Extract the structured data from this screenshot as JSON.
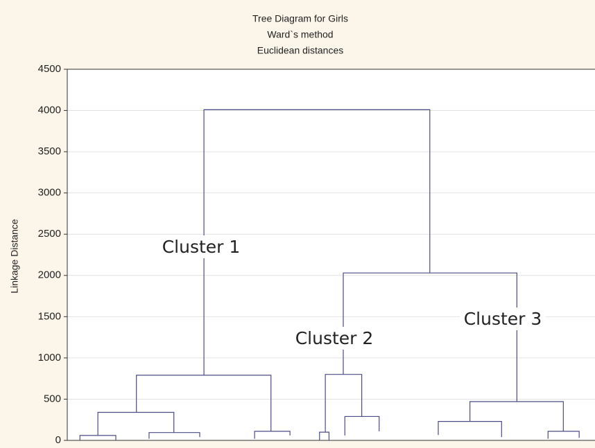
{
  "chart_data": {
    "type": "dendrogram",
    "title": [
      "Tree Diagram for Girls",
      "Ward`s method",
      "Euclidean distances"
    ],
    "y_label": "Linkage Distance",
    "ylim": [
      0,
      4500
    ],
    "yticks": [
      0,
      500,
      1000,
      1500,
      2000,
      2500,
      3000,
      3500,
      4000,
      4500
    ],
    "xlim": [
      0,
      100
    ],
    "grid": true,
    "color": "#4b4b86",
    "annotations": [
      "Cluster 1",
      "Cluster 2",
      "Cluster 3"
    ],
    "links": [
      {
        "x": [
          25.9,
          68.7
        ],
        "height": 4010,
        "left_from": 790,
        "right_from": 2030
      },
      {
        "x": [
          13.1,
          38.6
        ],
        "height": 790,
        "left_from": 340,
        "right_from": 110
      },
      {
        "x": [
          5.8,
          20.2
        ],
        "height": 340,
        "left_from": 60,
        "right_from": 95
      },
      {
        "x": [
          2.4,
          9.2
        ],
        "height": 60,
        "left_from": 0,
        "right_from": 0
      },
      {
        "x": [
          15.5,
          25.1
        ],
        "height": 95,
        "left_from": 20,
        "right_from": 40
      },
      {
        "x": [
          35.5,
          42.2
        ],
        "height": 110,
        "left_from": 20,
        "right_from": 60
      },
      {
        "x": [
          52.3,
          85.2
        ],
        "height": 2030,
        "left_from": 800,
        "right_from": 470
      },
      {
        "x": [
          48.9,
          55.8
        ],
        "height": 800,
        "left_from": 100,
        "right_from": 290
      },
      {
        "x": [
          47.8,
          49.6
        ],
        "height": 100,
        "left_from": 0,
        "right_from": 0
      },
      {
        "x": [
          52.6,
          59.1
        ],
        "height": 290,
        "left_from": 60,
        "right_from": 110
      },
      {
        "x": [
          76.3,
          94.0
        ],
        "height": 470,
        "left_from": 230,
        "right_from": 110
      },
      {
        "x": [
          70.3,
          82.3
        ],
        "height": 230,
        "left_from": 65,
        "right_from": 40
      },
      {
        "x": [
          91.1,
          97.0
        ],
        "height": 110,
        "left_from": 20,
        "right_from": 30
      }
    ]
  }
}
